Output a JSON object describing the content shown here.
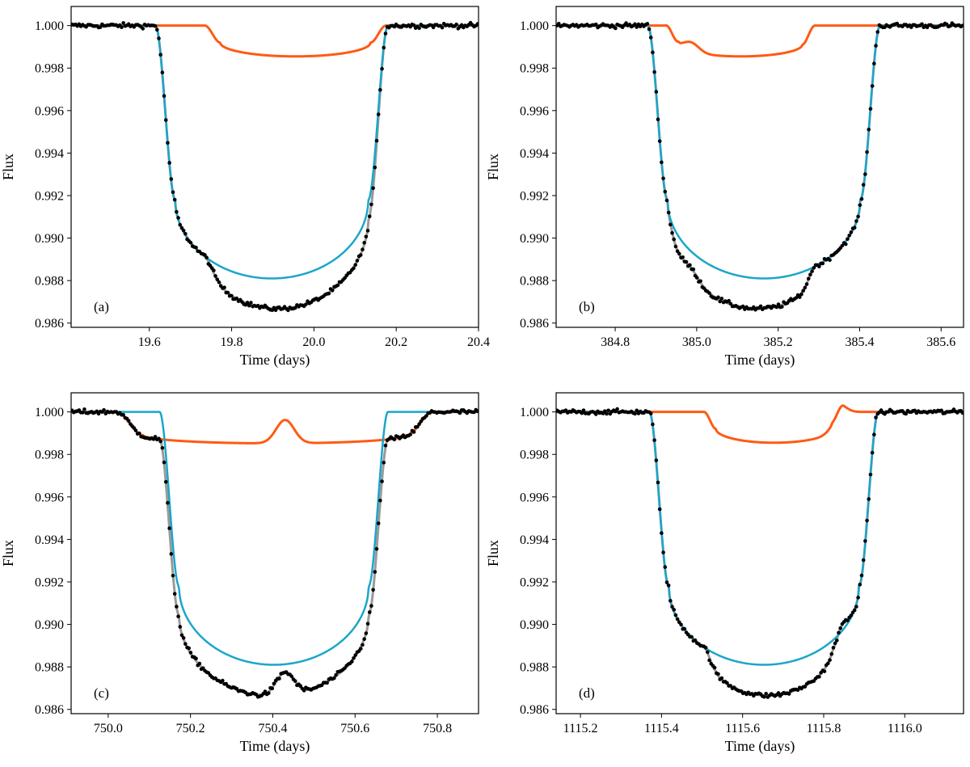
{
  "colors": {
    "planet_b": "#1ba6c9",
    "planet_c": "#ff5a14",
    "combined_model": "#9a9a9a",
    "data_points": "#000000"
  },
  "chart_data": [
    {
      "type": "line",
      "panel_label": "(a)",
      "xlabel": "Time (days)",
      "ylabel": "Flux",
      "xlim": [
        19.41,
        20.4
      ],
      "ylim": [
        0.9858,
        1.0009
      ],
      "xticks": [
        "19.6",
        "19.8",
        "20.0",
        "20.2",
        "20.4"
      ],
      "yticks": [
        "0.986",
        "0.988",
        "0.990",
        "0.992",
        "0.994",
        "0.996",
        "0.998",
        "1.000"
      ],
      "transit_b": {
        "t0": 19.895,
        "ingress_start": 19.615,
        "egress_end": 20.18,
        "depth_edge": 0.0082,
        "depth_center": 0.0119
      },
      "transit_c": {
        "t0": 20.0,
        "ingress_start": 19.735,
        "egress_end": 20.175,
        "depth_edge": 0.0008,
        "depth_center": 0.00145
      },
      "overlap_bump": null
    },
    {
      "type": "line",
      "panel_label": "(b)",
      "xlabel": "Time (days)",
      "ylabel": "Flux",
      "xlim": [
        384.655,
        385.655
      ],
      "ylim": [
        0.9858,
        1.0009
      ],
      "xticks": [
        "384.8",
        "385.0",
        "385.2",
        "385.4",
        "385.6"
      ],
      "yticks": [
        "0.986",
        "0.988",
        "0.990",
        "0.992",
        "0.994",
        "0.996",
        "0.998",
        "1.000"
      ],
      "transit_b": {
        "t0": 385.16,
        "ingress_start": 384.88,
        "egress_end": 385.45,
        "depth_edge": 0.0082,
        "depth_center": 0.0119
      },
      "transit_c": {
        "t0": 385.15,
        "ingress_start": 384.925,
        "egress_end": 385.29,
        "depth_edge": 0.0009,
        "depth_center": 0.00145
      },
      "overlap_bump": {
        "t": 384.985,
        "width": 0.02,
        "height": 0.00045
      }
    },
    {
      "type": "line",
      "panel_label": "(c)",
      "xlabel": "Time (days)",
      "ylabel": "Flux",
      "xlim": [
        749.91,
        750.9
      ],
      "ylim": [
        0.9858,
        1.0009
      ],
      "xticks": [
        "750.0",
        "750.2",
        "750.4",
        "750.6",
        "750.8"
      ],
      "yticks": [
        "0.986",
        "0.988",
        "0.990",
        "0.992",
        "0.994",
        "0.996",
        "0.998",
        "1.000"
      ],
      "transit_b": {
        "t0": 750.4,
        "ingress_start": 750.125,
        "egress_end": 750.68,
        "depth_edge": 0.0082,
        "depth_center": 0.0119
      },
      "transit_c": {
        "t0": 750.4,
        "ingress_start": 750.02,
        "egress_end": 750.79,
        "depth_edge": 0.0011,
        "depth_center": 0.00148
      },
      "overlap_bump": {
        "t": 750.43,
        "width": 0.022,
        "height": 0.0011
      }
    },
    {
      "type": "line",
      "panel_label": "(d)",
      "xlabel": "Time (days)",
      "ylabel": "Flux",
      "xlim": [
        1115.14,
        1116.145
      ],
      "ylim": [
        0.9858,
        1.0009
      ],
      "xticks": [
        "1115.2",
        "1115.4",
        "1115.6",
        "1115.8",
        "1116.0"
      ],
      "yticks": [
        "0.986",
        "0.988",
        "0.990",
        "0.992",
        "0.994",
        "0.996",
        "0.998",
        "1.000"
      ],
      "transit_b": {
        "t0": 1115.65,
        "ingress_start": 1115.37,
        "egress_end": 1115.935,
        "depth_edge": 0.0082,
        "depth_center": 0.0119
      },
      "transit_c": {
        "t0": 1115.67,
        "ingress_start": 1115.505,
        "egress_end": 1115.85,
        "depth_edge": 0.0008,
        "depth_center": 0.00145
      },
      "overlap_bump": {
        "t": 1115.835,
        "width": 0.018,
        "height": 0.0004
      }
    }
  ]
}
